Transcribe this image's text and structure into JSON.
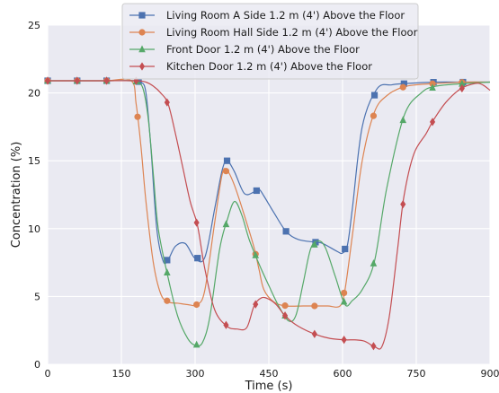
{
  "chart_data": {
    "type": "line",
    "title": "",
    "xlabel": "Time (s)",
    "ylabel": "Concentration (%)",
    "xlim": [
      0,
      900
    ],
    "ylim": [
      0,
      25
    ],
    "xticks": [
      0,
      150,
      300,
      450,
      600,
      750,
      900
    ],
    "yticks": [
      0,
      5,
      10,
      15,
      20,
      25
    ],
    "grid": true,
    "legend_position": "top-center",
    "series": [
      {
        "name": "Living Room A Side 1.2 m (4') Above the Floor",
        "color": "#4c72b0",
        "marker": "square",
        "x": [
          0,
          60,
          120,
          175,
          190,
          200,
          210,
          222,
          235,
          245,
          260,
          280,
          300,
          320,
          340,
          355,
          365,
          380,
          400,
          420,
          430,
          440,
          460,
          485,
          510,
          545,
          560,
          590,
          600,
          610,
          620,
          640,
          670,
          700,
          730,
          790,
          850,
          900
        ],
        "y": [
          20.9,
          20.9,
          20.9,
          20.9,
          20.8,
          20.0,
          16.0,
          10.0,
          7.6,
          7.7,
          8.7,
          8.9,
          7.8,
          7.9,
          11.5,
          14.3,
          15.0,
          14.2,
          12.6,
          12.7,
          12.9,
          12.4,
          11.2,
          9.8,
          9.2,
          9.0,
          8.9,
          8.3,
          8.2,
          8.8,
          11.5,
          17.5,
          20.3,
          20.6,
          20.7,
          20.8,
          20.8,
          20.8
        ],
        "marker_x": [
          0,
          60,
          120,
          185,
          243,
          305,
          365,
          425,
          485,
          545,
          605,
          665,
          725,
          785,
          845
        ]
      },
      {
        "name": "Living Room Hall Side 1.2 m (4') Above the Floor",
        "color": "#dd8452",
        "marker": "circle",
        "x": [
          0,
          60,
          120,
          170,
          180,
          190,
          200,
          215,
          230,
          245,
          265,
          285,
          305,
          320,
          340,
          355,
          365,
          380,
          400,
          420,
          430,
          440,
          460,
          485,
          520,
          545,
          570,
          595,
          605,
          620,
          640,
          665,
          690,
          720,
          750,
          790,
          850,
          900
        ],
        "y": [
          20.9,
          20.9,
          20.9,
          20.9,
          19.2,
          16.0,
          12.0,
          7.5,
          5.2,
          4.6,
          4.5,
          4.4,
          4.4,
          5.5,
          10.5,
          14.0,
          14.3,
          13.2,
          11.0,
          8.6,
          7.0,
          5.5,
          4.6,
          4.3,
          4.3,
          4.3,
          4.3,
          4.3,
          5.5,
          9.5,
          15.0,
          18.6,
          19.8,
          20.4,
          20.6,
          20.7,
          20.8,
          20.8
        ],
        "marker_x": [
          0,
          60,
          120,
          183,
          243,
          303,
          363,
          423,
          483,
          543,
          603,
          663,
          723,
          783,
          843
        ]
      },
      {
        "name": "Front Door 1.2 m (4') Above the Floor",
        "color": "#55a868",
        "marker": "triangle",
        "x": [
          0,
          60,
          120,
          175,
          185,
          195,
          205,
          215,
          225,
          245,
          265,
          285,
          300,
          315,
          330,
          350,
          365,
          380,
          395,
          410,
          430,
          450,
          470,
          490,
          505,
          520,
          535,
          550,
          565,
          585,
          605,
          620,
          640,
          665,
          690,
          725,
          760,
          790,
          850,
          900
        ],
        "y": [
          20.9,
          20.9,
          20.9,
          20.9,
          20.8,
          20.2,
          18.0,
          14.0,
          10.0,
          6.4,
          3.5,
          1.9,
          1.4,
          1.6,
          3.5,
          8.5,
          10.6,
          12.0,
          11.0,
          9.2,
          7.4,
          5.8,
          4.3,
          3.2,
          3.6,
          6.0,
          8.5,
          9.1,
          8.6,
          6.5,
          4.4,
          4.7,
          5.5,
          7.6,
          13.0,
          18.3,
          20.0,
          20.5,
          20.7,
          20.8
        ],
        "marker_x": [
          0,
          60,
          120,
          180,
          243,
          303,
          363,
          423,
          483,
          543,
          603,
          663,
          723,
          783,
          843
        ]
      },
      {
        "name": "Kitchen Door 1.2 m (4') Above the Floor",
        "color": "#c44e52",
        "marker": "diamond",
        "x": [
          0,
          60,
          120,
          180,
          200,
          215,
          230,
          245,
          260,
          275,
          290,
          305,
          320,
          340,
          365,
          385,
          405,
          420,
          435,
          450,
          465,
          485,
          510,
          545,
          575,
          605,
          625,
          645,
          665,
          680,
          695,
          712,
          725,
          745,
          770,
          785,
          810,
          840,
          870,
          885,
          900
        ],
        "y": [
          20.9,
          20.9,
          20.9,
          20.9,
          20.8,
          20.5,
          20.0,
          19.2,
          17.0,
          14.5,
          12.0,
          10.2,
          7.0,
          4.0,
          2.8,
          2.6,
          2.7,
          4.3,
          4.9,
          4.8,
          4.4,
          3.5,
          2.8,
          2.2,
          1.9,
          1.8,
          1.8,
          1.7,
          1.3,
          1.3,
          3.5,
          8.5,
          12.4,
          15.5,
          17.0,
          18.0,
          19.3,
          20.3,
          20.7,
          20.6,
          20.2
        ],
        "marker_x": [
          0,
          60,
          120,
          180,
          243,
          303,
          363,
          423,
          483,
          543,
          603,
          663,
          723,
          783,
          843
        ]
      }
    ]
  }
}
